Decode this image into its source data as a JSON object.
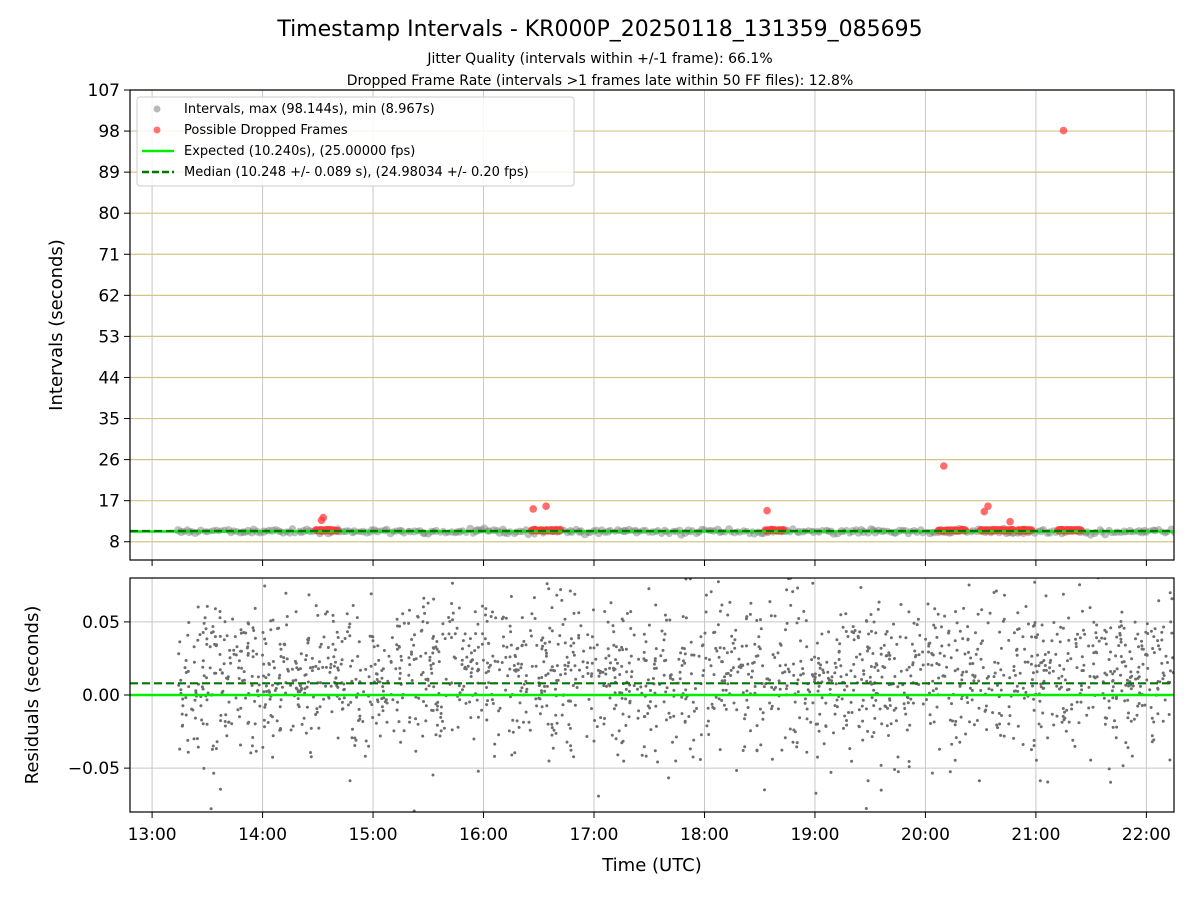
{
  "figure": {
    "title": "Timestamp Intervals - KR000P_20250118_131359_085695",
    "subtitle_line1": "Jitter Quality (intervals within +/-1 frame): 66.1%",
    "subtitle_line2": "Dropped Frame Rate (intervals >1 frames late within 50 FF files): 12.8%"
  },
  "colors": {
    "intervals": "#808080",
    "dropped": "#ff3b3b",
    "expected": "#00ee00",
    "median": "#007700",
    "hgrid_top": "#d4c486",
    "grid": "#c8c8c8"
  },
  "chart_data": [
    {
      "type": "scatter",
      "ylabel": "Intervals (seconds)",
      "xlim": [
        "12:48",
        "22:15"
      ],
      "ylim": [
        4,
        107
      ],
      "yticks": [
        "8",
        "17",
        "26",
        "35",
        "44",
        "53",
        "62",
        "71",
        "80",
        "89",
        "98",
        "107"
      ],
      "xticks": [
        "13:00",
        "14:00",
        "15:00",
        "16:00",
        "17:00",
        "18:00",
        "19:00",
        "20:00",
        "21:00",
        "22:00"
      ],
      "grid": true,
      "legend_placement": "upper-left",
      "legend": [
        "Intervals, max (98.144s), min (8.967s)",
        "Possible Dropped Frames",
        "Expected (10.240s), (25.00000 fps)",
        "Median (10.248 +/- 0.089 s), (24.98034 +/- 0.20 fps)"
      ],
      "reference_lines": [
        {
          "name": "Expected",
          "y": 10.24,
          "style": "solid"
        },
        {
          "name": "Median",
          "y": 10.248,
          "style": "dashed"
        }
      ],
      "intervals_band": {
        "x_start": "13:14",
        "x_end": "22:15",
        "y_center": 10.24
      },
      "dropped_outliers": [
        {
          "x": "14:32",
          "y": 12.7
        },
        {
          "x": "14:33",
          "y": 13.3
        },
        {
          "x": "16:27",
          "y": 15.2
        },
        {
          "x": "16:34",
          "y": 15.8
        },
        {
          "x": "18:34",
          "y": 14.8
        },
        {
          "x": "20:10",
          "y": 24.6
        },
        {
          "x": "20:32",
          "y": 14.6
        },
        {
          "x": "20:34",
          "y": 15.8
        },
        {
          "x": "20:46",
          "y": 12.4
        },
        {
          "x": "21:15",
          "y": 98.1
        }
      ],
      "dropped_clusters": [
        {
          "start": "14:29",
          "end": "14:41",
          "y": 10.5
        },
        {
          "start": "16:26",
          "end": "16:42",
          "y": 10.5
        },
        {
          "start": "18:33",
          "end": "18:43",
          "y": 10.5
        },
        {
          "start": "20:07",
          "end": "20:22",
          "y": 10.5
        },
        {
          "start": "20:30",
          "end": "20:48",
          "y": 10.5
        },
        {
          "start": "20:50",
          "end": "20:58",
          "y": 10.5
        },
        {
          "start": "21:12",
          "end": "21:25",
          "y": 10.5
        }
      ]
    },
    {
      "type": "scatter",
      "xlabel": "Time (UTC)",
      "ylabel": "Residuals (seconds)",
      "xlim": [
        "12:48",
        "22:15"
      ],
      "ylim": [
        -0.08,
        0.08
      ],
      "yticks": [
        "0.05",
        "0.00",
        "−0.05"
      ],
      "ytick_values": [
        0.05,
        0.0,
        -0.05
      ],
      "xticks": [
        "13:00",
        "14:00",
        "15:00",
        "16:00",
        "17:00",
        "18:00",
        "19:00",
        "20:00",
        "21:00",
        "22:00"
      ],
      "grid": true,
      "reference_lines": [
        {
          "name": "Expected",
          "y": 0.0,
          "style": "solid"
        },
        {
          "name": "Median",
          "y": 0.008,
          "style": "dashed"
        }
      ],
      "residuals_range": {
        "x_start": "13:14",
        "x_end": "22:15",
        "spread": 0.08
      }
    }
  ]
}
